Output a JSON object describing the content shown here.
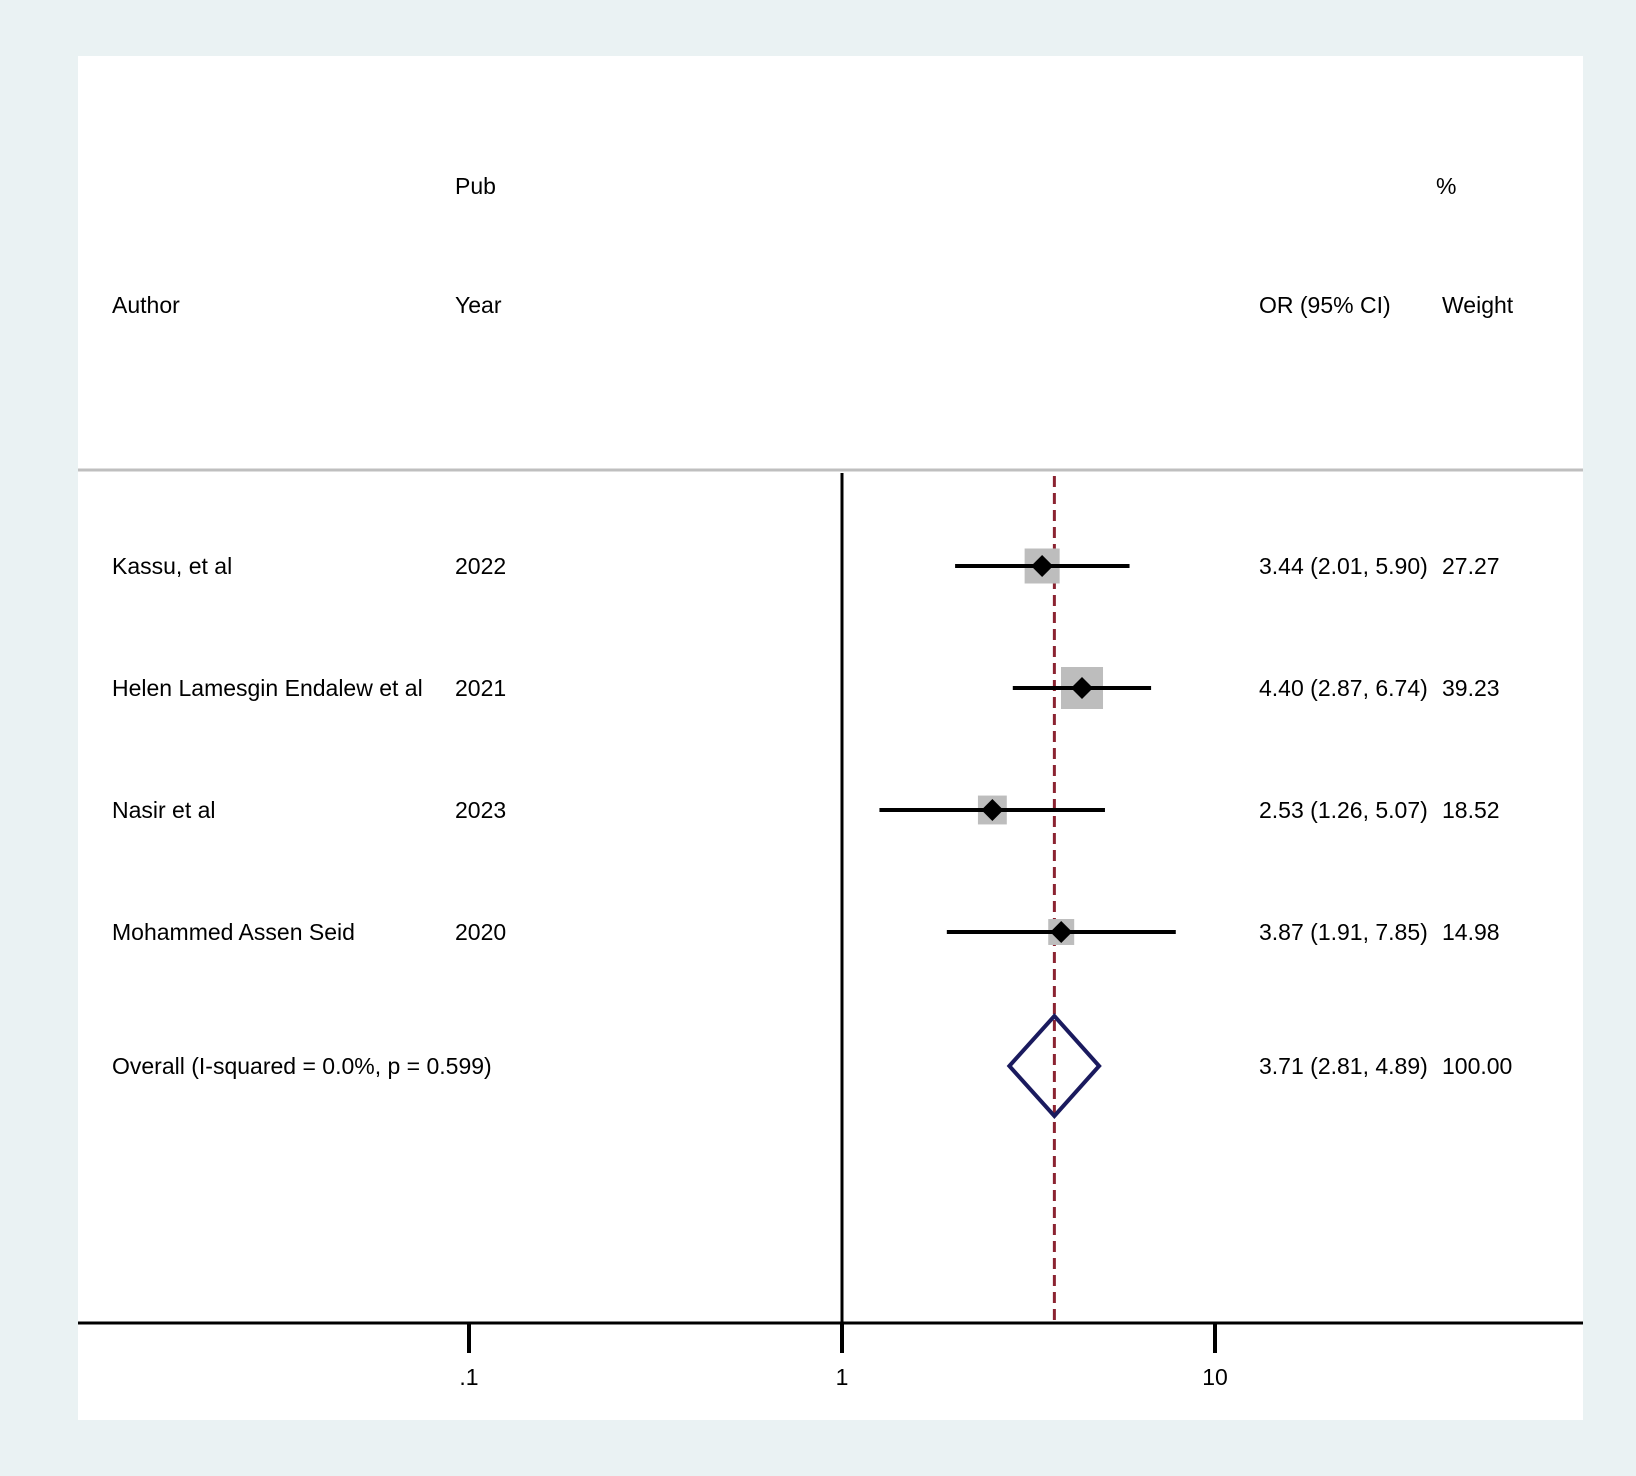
{
  "header": {
    "author_label": "Author",
    "pub_label": "Pub",
    "year_label": "Year",
    "or_label": "OR (95% CI)",
    "pct_label": "%",
    "weight_label": "Weight"
  },
  "chart_data": {
    "type": "forest",
    "scale": "log",
    "xlim": [
      0.03,
      50
    ],
    "x_ticks": [
      0.1,
      1,
      10
    ],
    "x_tick_labels": [
      ".1",
      "1",
      "10"
    ],
    "null_line": 1,
    "studies": [
      {
        "author": "Kassu, et al",
        "year": "2022",
        "or": 3.44,
        "lower": 2.01,
        "upper": 5.9,
        "ci_text": "3.44 (2.01, 5.90)",
        "weight": 27.27,
        "weight_text": "27.27"
      },
      {
        "author": "Helen Lamesgin Endalew et al",
        "year": "2021",
        "or": 4.4,
        "lower": 2.87,
        "upper": 6.74,
        "ci_text": "4.40 (2.87, 6.74)",
        "weight": 39.23,
        "weight_text": "39.23"
      },
      {
        "author": "Nasir et al",
        "year": "2023",
        "or": 2.53,
        "lower": 1.26,
        "upper": 5.07,
        "ci_text": "2.53 (1.26, 5.07)",
        "weight": 18.52,
        "weight_text": "18.52"
      },
      {
        "author": "Mohammed Assen Seid",
        "year": "2020",
        "or": 3.87,
        "lower": 1.91,
        "upper": 7.85,
        "ci_text": "3.87 (1.91, 7.85)",
        "weight": 14.98,
        "weight_text": "14.98"
      }
    ],
    "overall": {
      "label": "Overall  (I-squared = 0.0%, p = 0.599)",
      "or": 3.71,
      "lower": 2.81,
      "upper": 4.89,
      "ci_text": "3.71 (2.81, 4.89)",
      "weight_text": "100.00"
    },
    "colors": {
      "box": "#bdbdbd",
      "marker": "#000000",
      "diamond": "#1a1a5e",
      "pooled_line": "#8b2331",
      "separator": "#bfbfbf"
    }
  }
}
